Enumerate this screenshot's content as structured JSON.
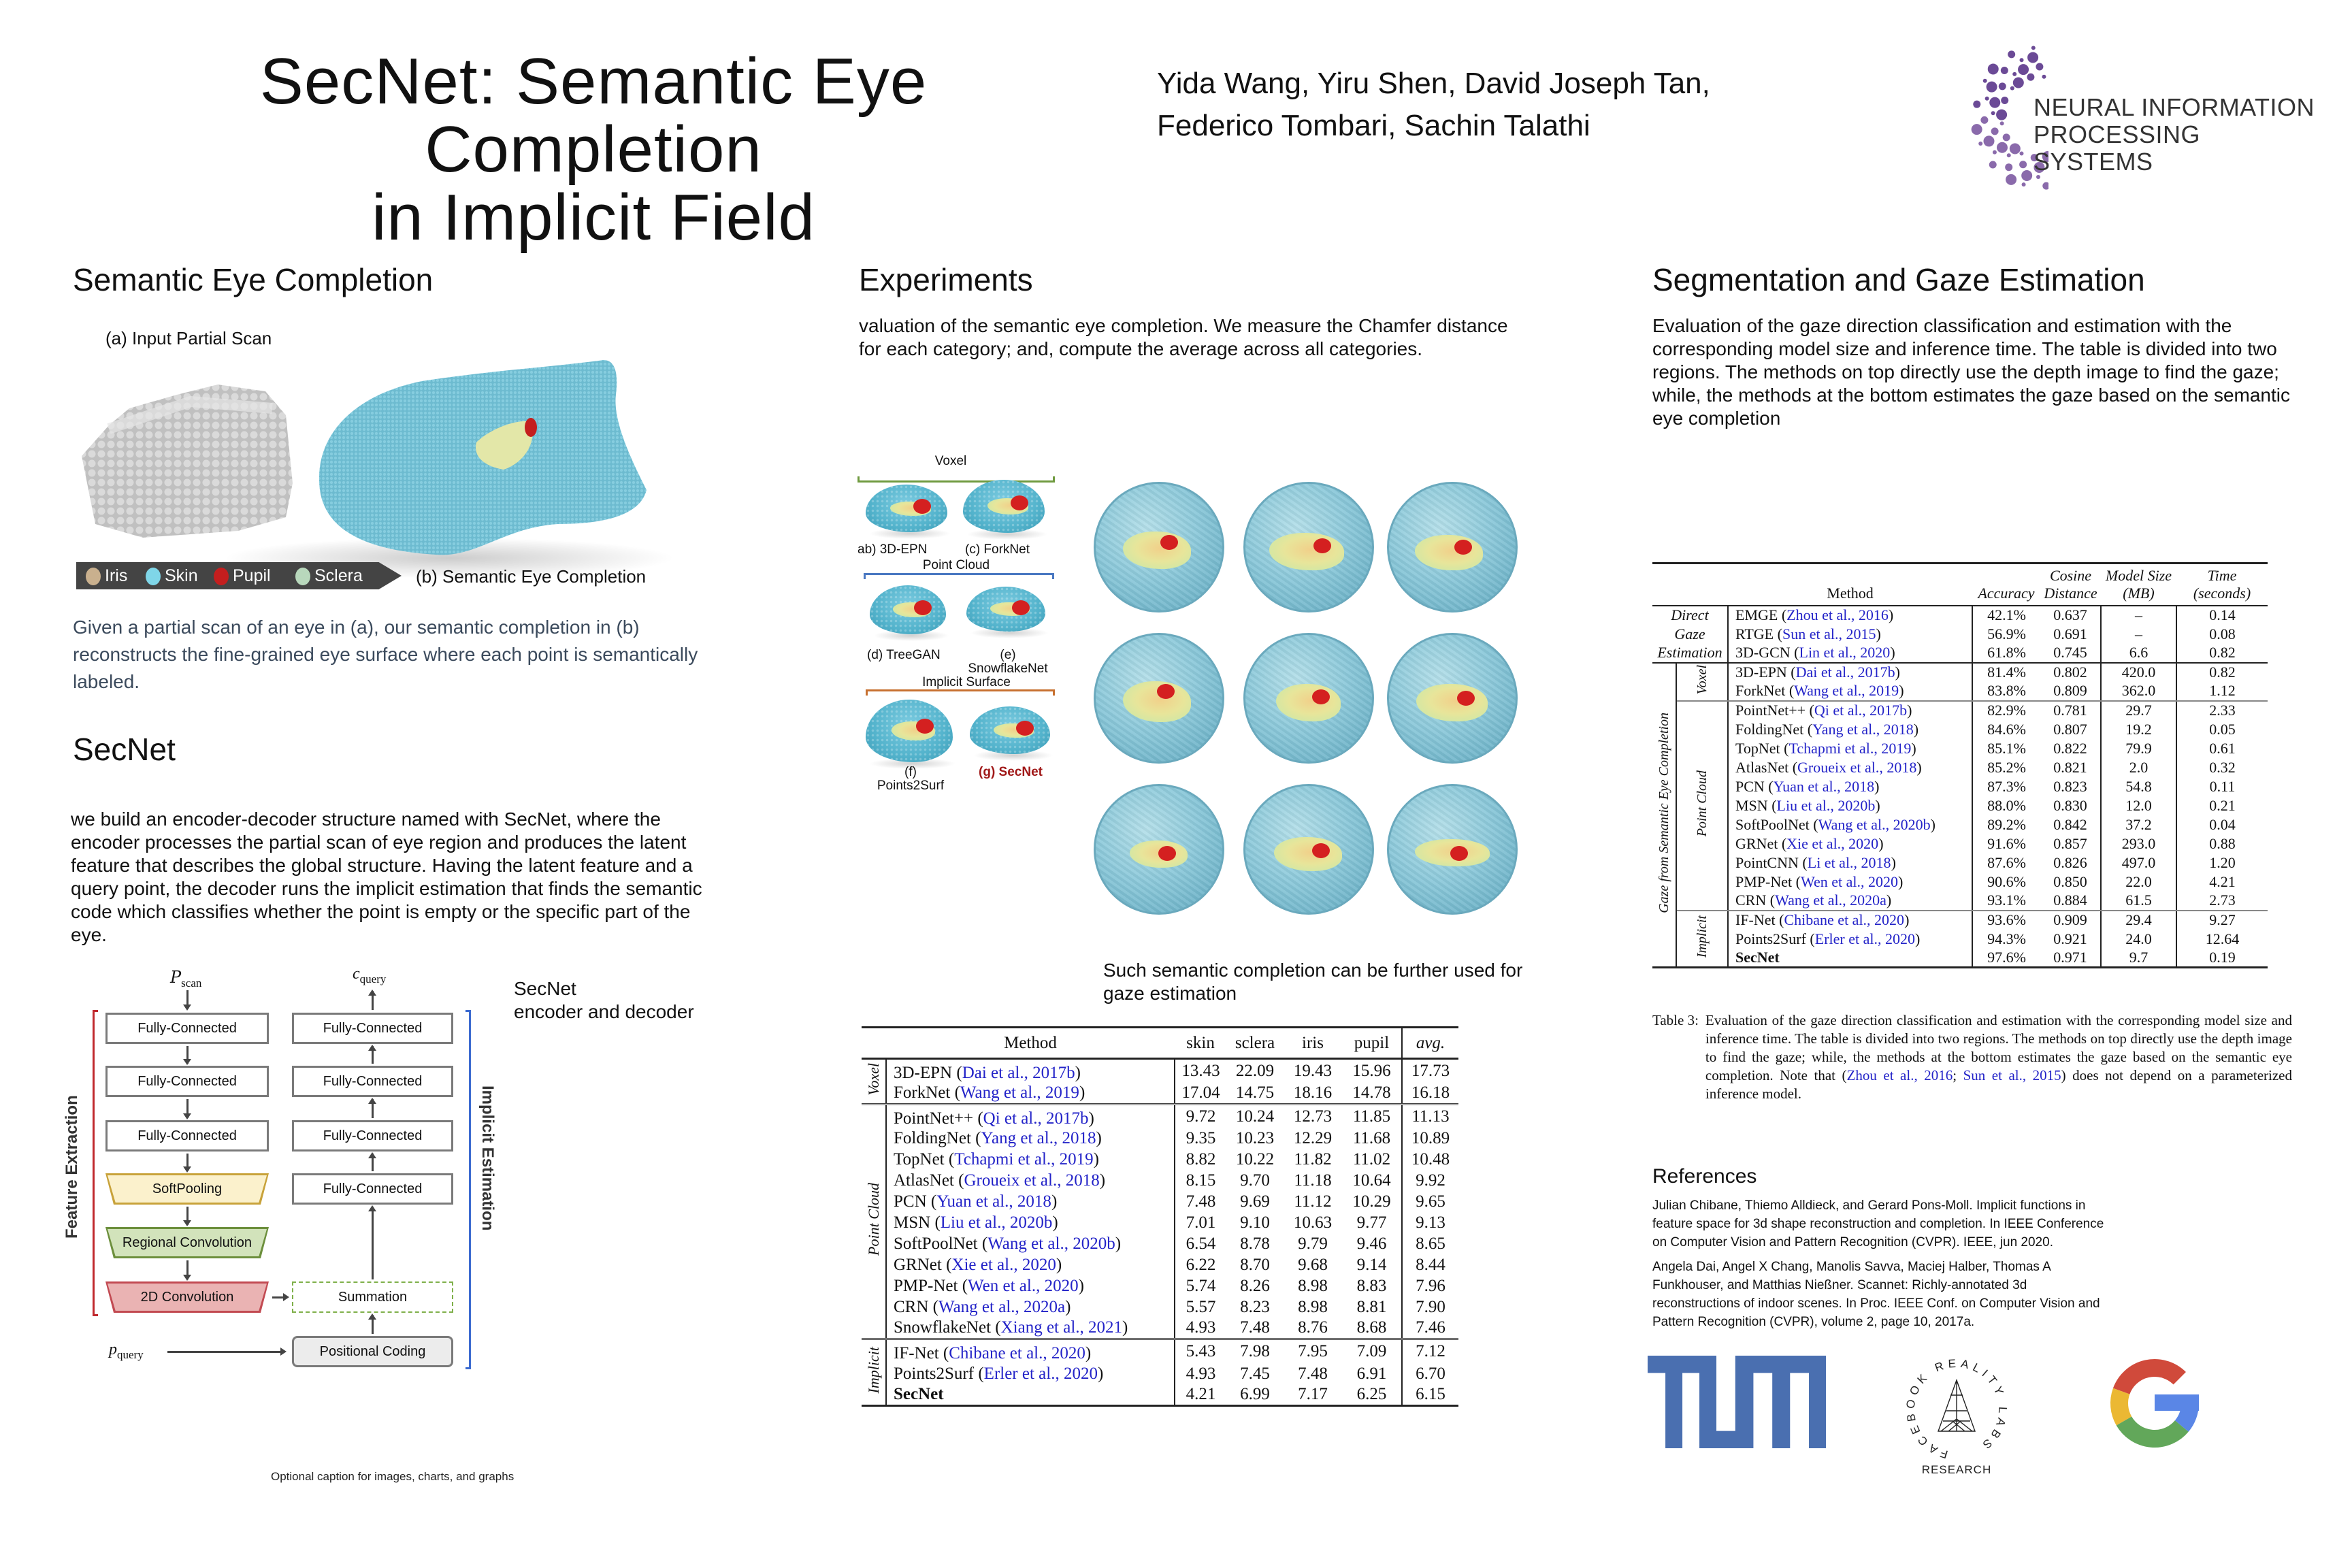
{
  "header": {
    "title_line1": "SecNet: Semantic Eye Completion",
    "title_line2": "in Implicit Field",
    "authors_line1": "Yida Wang, Yiru Shen, David Joseph Tan,",
    "authors_line2": "Federico Tombari, Sachin Talathi",
    "logo_line1": "NEURAL INFORMATION",
    "logo_line2": "PROCESSING SYSTEMS",
    "logo_color": "#6b4a96"
  },
  "col1": {
    "heading": "Semantic Eye Completion",
    "fig_label_a": "(a) Input Partial Scan",
    "fig_label_b": "(b) Semantic Eye Completion",
    "legend": [
      {
        "label": "Iris",
        "color": "#c9b08e"
      },
      {
        "label": "Skin",
        "color": "#7fd6e8"
      },
      {
        "label": "Pupil",
        "color": "#c41e1e"
      },
      {
        "label": "Sclera",
        "color": "#b8d8bc"
      }
    ],
    "caption": "Given a partial scan of an eye in (a), our semantic completion in (b) reconstructs the fine-grained eye surface where each point is semantically labeled.",
    "secnet_heading": "SecNet",
    "secnet_text": "we build an encoder-decoder structure named with SecNet, where the encoder processes the partial scan of eye region and produces the latent feature that describes the global structure. Having the latent feature and a query point, the decoder runs the implicit estimation that finds the semantic code which classifies whether the point is empty or the specific part of the eye.",
    "diagram": {
      "input_scan": "P",
      "input_scan_sub": "scan",
      "output": "c",
      "output_sub": "query",
      "query": "p",
      "query_sub": "query",
      "encoder": [
        "Fully-Connected",
        "Fully-Connected",
        "Fully-Connected",
        "SoftPooling",
        "Regional Convolution",
        "2D Convolution"
      ],
      "decoder": [
        "Fully-Connected",
        "Fully-Connected",
        "Fully-Connected",
        "Fully-Connected"
      ],
      "summation": "Summation",
      "positional": "Positional Coding",
      "feature_label": "Feature Extraction",
      "implicit_label": "Implicit Estimation",
      "side_title": "SecNet",
      "side_subtitle": "encoder and decoder"
    },
    "optional_caption": "Optional caption for images, charts, and graphs"
  },
  "col2": {
    "heading": "Experiments",
    "text": "valuation of the semantic eye completion. We measure the Chamfer distance for each category; and, compute the average across all categories.",
    "methods_fig": {
      "voxel": "Voxel",
      "point_cloud": "Point Cloud",
      "implicit_surface": "Implicit Surface",
      "a": "ab) 3D-EPN",
      "c": "(c) ForkNet",
      "d": "(d) TreeGAN",
      "e1": "(e)",
      "e2": "SnowflakeNet",
      "f1": "(f)",
      "f2": "Points2Surf",
      "g": "(g) SecNet"
    },
    "gaze_text": "Such semantic completion can be further used for gaze estimation",
    "table": {
      "headers": [
        "Method",
        "skin",
        "sclera",
        "iris",
        "pupil",
        "avg."
      ],
      "groups": [
        {
          "name": "Voxel",
          "rows": [
            {
              "name": "3D-EPN",
              "cite": "Dai et al., 2017b",
              "values": [
                "13.43",
                "22.09",
                "19.43",
                "15.96",
                "17.73"
              ]
            },
            {
              "name": "ForkNet",
              "cite": "Wang et al., 2019",
              "values": [
                "17.04",
                "14.75",
                "18.16",
                "14.78",
                "16.18"
              ]
            }
          ]
        },
        {
          "name": "Point Cloud",
          "rows": [
            {
              "name": "PointNet++",
              "cite": "Qi et al., 2017b",
              "values": [
                "9.72",
                "10.24",
                "12.73",
                "11.85",
                "11.13"
              ]
            },
            {
              "name": "FoldingNet",
              "cite": "Yang et al., 2018",
              "values": [
                "9.35",
                "10.23",
                "12.29",
                "11.68",
                "10.89"
              ]
            },
            {
              "name": "TopNet",
              "cite": "Tchapmi et al., 2019",
              "values": [
                "8.82",
                "10.22",
                "11.82",
                "11.02",
                "10.48"
              ]
            },
            {
              "name": "AtlasNet",
              "cite": "Groueix et al., 2018",
              "values": [
                "8.15",
                "9.70",
                "11.18",
                "10.64",
                "9.92"
              ]
            },
            {
              "name": "PCN",
              "cite": "Yuan et al., 2018",
              "values": [
                "7.48",
                "9.69",
                "11.12",
                "10.29",
                "9.65"
              ]
            },
            {
              "name": "MSN",
              "cite": "Liu et al., 2020b",
              "values": [
                "7.01",
                "9.10",
                "10.63",
                "9.77",
                "9.13"
              ]
            },
            {
              "name": "SoftPoolNet",
              "cite": "Wang et al., 2020b",
              "values": [
                "6.54",
                "8.78",
                "9.79",
                "9.46",
                "8.65"
              ]
            },
            {
              "name": "GRNet",
              "cite": "Xie et al., 2020",
              "values": [
                "6.22",
                "8.70",
                "9.68",
                "9.14",
                "8.44"
              ]
            },
            {
              "name": "PMP-Net",
              "cite": "Wen et al., 2020",
              "values": [
                "5.74",
                "8.26",
                "8.98",
                "8.83",
                "7.96"
              ]
            },
            {
              "name": "CRN",
              "cite": "Wang et al., 2020a",
              "values": [
                "5.57",
                "8.23",
                "8.98",
                "8.81",
                "7.90"
              ]
            },
            {
              "name": "SnowflakeNet",
              "cite": "Xiang et al., 2021",
              "values": [
                "4.93",
                "7.48",
                "8.76",
                "8.68",
                "7.46"
              ]
            }
          ]
        },
        {
          "name": "Implicit",
          "rows": [
            {
              "name": "IF-Net",
              "cite": "Chibane et al., 2020",
              "values": [
                "5.43",
                "7.98",
                "7.95",
                "7.09",
                "7.12"
              ]
            },
            {
              "name": "Points2Surf",
              "cite": "Erler et al., 2020",
              "values": [
                "4.93",
                "7.45",
                "7.48",
                "6.91",
                "6.70"
              ]
            },
            {
              "name": "SecNet",
              "cite": "",
              "bold": true,
              "values": [
                "4.21",
                "6.99",
                "7.17",
                "6.25",
                "6.15"
              ]
            }
          ]
        }
      ]
    }
  },
  "col3": {
    "heading": "Segmentation and Gaze Estimation",
    "text": "Evaluation of the gaze direction classification and estimation with the corresponding model size and inference time. The table is divided into two regions. The methods on top directly use the depth image to find the gaze; while, the methods at the bottom estimates the gaze based on the semantic eye completion",
    "table": {
      "headers": {
        "method": "Method",
        "accuracy": "Accuracy",
        "cosine": [
          "Cosine",
          "Distance"
        ],
        "model_size": [
          "Model Size",
          "(MB)"
        ],
        "time": [
          "Time",
          "(seconds)"
        ]
      },
      "direct_group": [
        "Direct",
        "Gaze",
        "Estimation"
      ],
      "direct_rows": [
        {
          "name": "EMGE",
          "cite": "Zhou et al., 2016",
          "values": [
            "42.1%",
            "0.637",
            "–",
            "0.14"
          ]
        },
        {
          "name": "RTGE",
          "cite": "Sun et al., 2015",
          "values": [
            "56.9%",
            "0.691",
            "–",
            "0.08"
          ]
        },
        {
          "name": "3D-GCN",
          "cite": "Lin et al., 2020",
          "values": [
            "61.8%",
            "0.745",
            "6.6",
            "0.82"
          ]
        }
      ],
      "semantic_group": "Gaze from Semantic Eye Completion",
      "groups": [
        {
          "name": "Voxel",
          "rows": [
            {
              "name": "3D-EPN",
              "cite": "Dai et al., 2017b",
              "values": [
                "81.4%",
                "0.802",
                "420.0",
                "0.82"
              ]
            },
            {
              "name": "ForkNet",
              "cite": "Wang et al., 2019",
              "values": [
                "83.8%",
                "0.809",
                "362.0",
                "1.12"
              ]
            }
          ]
        },
        {
          "name": "Point Cloud",
          "rows": [
            {
              "name": "PointNet++",
              "cite": "Qi et al., 2017b",
              "values": [
                "82.9%",
                "0.781",
                "29.7",
                "2.33"
              ]
            },
            {
              "name": "FoldingNet",
              "cite": "Yang et al., 2018",
              "values": [
                "84.6%",
                "0.807",
                "19.2",
                "0.05"
              ]
            },
            {
              "name": "TopNet",
              "cite": "Tchapmi et al., 2019",
              "values": [
                "85.1%",
                "0.822",
                "79.9",
                "0.61"
              ]
            },
            {
              "name": "AtlasNet",
              "cite": "Groueix et al., 2018",
              "values": [
                "85.2%",
                "0.821",
                "2.0",
                "0.32"
              ]
            },
            {
              "name": "PCN",
              "cite": "Yuan et al., 2018",
              "values": [
                "87.3%",
                "0.823",
                "54.8",
                "0.11"
              ]
            },
            {
              "name": "MSN",
              "cite": "Liu et al., 2020b",
              "values": [
                "88.0%",
                "0.830",
                "12.0",
                "0.21"
              ]
            },
            {
              "name": "SoftPoolNet",
              "cite": "Wang et al., 2020b",
              "values": [
                "89.2%",
                "0.842",
                "37.2",
                "0.04"
              ]
            },
            {
              "name": "GRNet",
              "cite": "Xie et al., 2020",
              "values": [
                "91.6%",
                "0.857",
                "293.0",
                "0.88"
              ]
            },
            {
              "name": "PointCNN",
              "cite": "Li et al., 2018",
              "values": [
                "87.6%",
                "0.826",
                "497.0",
                "1.20"
              ]
            },
            {
              "name": "PMP-Net",
              "cite": "Wen et al., 2020",
              "values": [
                "90.6%",
                "0.850",
                "22.0",
                "4.21"
              ]
            },
            {
              "name": "CRN",
              "cite": "Wang et al., 2020a",
              "values": [
                "93.1%",
                "0.884",
                "61.5",
                "2.73"
              ]
            }
          ]
        },
        {
          "name": "Implicit",
          "rows": [
            {
              "name": "IF-Net",
              "cite": "Chibane et al., 2020",
              "values": [
                "93.6%",
                "0.909",
                "29.4",
                "9.27"
              ]
            },
            {
              "name": "Points2Surf",
              "cite": "Erler et al., 2020",
              "values": [
                "94.3%",
                "0.921",
                "24.0",
                "12.64"
              ]
            },
            {
              "name": "SecNet",
              "cite": "",
              "bold": true,
              "bold_cols": [
                0,
                1
              ],
              "values": [
                "97.6%",
                "0.971",
                "9.7",
                "0.19"
              ]
            }
          ]
        }
      ],
      "caption_prefix": "Table 3:",
      "caption_text": "Evaluation of the gaze direction classification and estimation with the corresponding model size and inference time.  The table is divided into two regions.  The methods on top directly use the depth image to find the gaze; while, the methods at the bottom estimates the gaze based on the semantic eye completion. Note that (",
      "caption_cite1": "Zhou et al., 2016",
      "caption_sep": "; ",
      "caption_cite2": "Sun et al., 2015",
      "caption_suffix": ") does not depend on a parameterized inference model."
    },
    "references_heading": "References",
    "references": [
      "Julian Chibane, Thiemo Alldieck, and Gerard Pons-Moll. Implicit functions in feature space for 3d shape reconstruction and completion. In IEEE Conference on Computer Vision and Pattern Recognition (CVPR). IEEE, jun 2020.",
      "Angela Dai, Angel X Chang, Manolis Savva, Maciej Halber, Thomas A Funkhouser, and Matthias Nießner. Scannet: Richly-annotated 3d reconstructions of indoor scenes. In Proc. IEEE Conf. on Computer Vision and Pattern Recognition (CVPR), volume 2, page 10, 2017a."
    ],
    "logos": {
      "tum_color": "#4a6fb0",
      "frl_ring": "FACEBOOK REALITY LABS",
      "frl_sub": "RESEARCH",
      "google_colors": [
        "#d04a3b",
        "#ebb833",
        "#62a75a",
        "#5a86e6"
      ]
    }
  }
}
